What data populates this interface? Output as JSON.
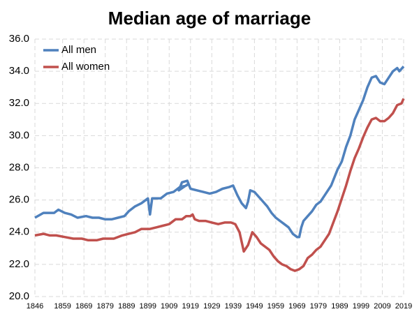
{
  "chart_data": {
    "type": "line",
    "title": "Median age of marriage",
    "xlim": [
      1846,
      2019
    ],
    "xticks": [
      1846,
      1859,
      1869,
      1879,
      1889,
      1899,
      1909,
      1919,
      1929,
      1939,
      1949,
      1959,
      1969,
      1979,
      1989,
      1999,
      2009,
      2019
    ],
    "ylim": [
      20,
      36
    ],
    "yticks": [
      {
        "value": 20,
        "label": "20.0"
      },
      {
        "value": 22,
        "label": "22.0"
      },
      {
        "value": 24,
        "label": "24.0"
      },
      {
        "value": 26,
        "label": "26.0"
      },
      {
        "value": 28,
        "label": "28.0"
      },
      {
        "value": 30,
        "label": "30.0"
      },
      {
        "value": 32,
        "label": "32.0"
      },
      {
        "value": 34,
        "label": "34.0"
      },
      {
        "value": 36,
        "label": "36.0"
      }
    ],
    "grid": true,
    "legend": "top-left",
    "series": [
      {
        "name": "All men",
        "color": "#4f81bd",
        "x": [
          1846,
          1850,
          1855,
          1857,
          1860,
          1863,
          1866,
          1870,
          1873,
          1876,
          1879,
          1882,
          1885,
          1888,
          1890,
          1893,
          1896,
          1899,
          1900,
          1901,
          1905,
          1908,
          1911,
          1914,
          1917,
          1918,
          1913.5,
          1915,
          1917.5,
          1919,
          1922,
          1925,
          1928,
          1931,
          1934,
          1937,
          1939,
          1941,
          1943,
          1945,
          1946,
          1947,
          1949,
          1951,
          1953,
          1955,
          1957,
          1959,
          1961,
          1963,
          1965,
          1967,
          1969,
          1970,
          1971,
          1972,
          1974,
          1976,
          1978,
          1980,
          1982,
          1985,
          1988,
          1990,
          1992,
          1994,
          1996,
          1998,
          2000,
          2002,
          2004,
          2006,
          2008,
          2010,
          2012,
          2014,
          2016,
          2017,
          2019
        ],
        "values": [
          24.9,
          25.2,
          25.2,
          25.4,
          25.2,
          25.1,
          24.9,
          25.0,
          24.9,
          24.9,
          24.8,
          24.8,
          24.9,
          25.0,
          25.3,
          25.6,
          25.8,
          26.1,
          25.1,
          26.1,
          26.1,
          26.4,
          26.5,
          26.8,
          26.9,
          27.0,
          26.6,
          27.1,
          27.2,
          26.7,
          26.6,
          26.5,
          26.4,
          26.5,
          26.7,
          26.8,
          26.9,
          26.3,
          25.8,
          25.5,
          25.9,
          26.6,
          26.5,
          26.2,
          25.9,
          25.6,
          25.2,
          24.9,
          24.7,
          24.5,
          24.3,
          23.9,
          23.7,
          23.7,
          24.3,
          24.7,
          25.0,
          25.3,
          25.7,
          25.9,
          26.3,
          26.9,
          27.9,
          28.4,
          29.3,
          30.0,
          31.0,
          31.6,
          32.2,
          33.0,
          33.6,
          33.7,
          33.3,
          33.2,
          33.6,
          34.0,
          34.2,
          34.0,
          34.3
        ]
      },
      {
        "name": "All women",
        "color": "#c0504d",
        "x": [
          1846,
          1850,
          1853,
          1856,
          1860,
          1864,
          1868,
          1871,
          1875,
          1878,
          1883,
          1887,
          1890,
          1893,
          1896,
          1900,
          1903,
          1906,
          1909,
          1912,
          1915,
          1917,
          1919,
          1920,
          1921,
          1923,
          1926,
          1929,
          1932,
          1935,
          1938,
          1940,
          1942,
          1944,
          1946,
          1947,
          1948,
          1950,
          1952,
          1954,
          1956,
          1958,
          1960,
          1962,
          1964,
          1966,
          1968,
          1970,
          1972,
          1974,
          1976,
          1978,
          1980,
          1982,
          1984,
          1986,
          1988,
          1990,
          1992,
          1994,
          1996,
          1998,
          2000,
          2002,
          2004,
          2006,
          2008,
          2010,
          2012,
          2014,
          2016,
          2018,
          2019
        ],
        "values": [
          23.8,
          23.9,
          23.8,
          23.8,
          23.7,
          23.6,
          23.6,
          23.5,
          23.5,
          23.6,
          23.6,
          23.8,
          23.9,
          24.0,
          24.2,
          24.2,
          24.3,
          24.4,
          24.5,
          24.8,
          24.8,
          25.0,
          25.0,
          25.1,
          24.8,
          24.7,
          24.7,
          24.6,
          24.5,
          24.6,
          24.6,
          24.5,
          24.0,
          22.8,
          23.2,
          23.6,
          24.0,
          23.7,
          23.3,
          23.1,
          22.9,
          22.5,
          22.2,
          22.0,
          21.9,
          21.7,
          21.6,
          21.7,
          21.9,
          22.4,
          22.6,
          22.9,
          23.1,
          23.5,
          23.9,
          24.6,
          25.3,
          26.1,
          26.9,
          27.8,
          28.6,
          29.2,
          29.9,
          30.5,
          31.0,
          31.1,
          30.9,
          30.9,
          31.1,
          31.4,
          31.9,
          32.0,
          32.3
        ]
      }
    ]
  }
}
